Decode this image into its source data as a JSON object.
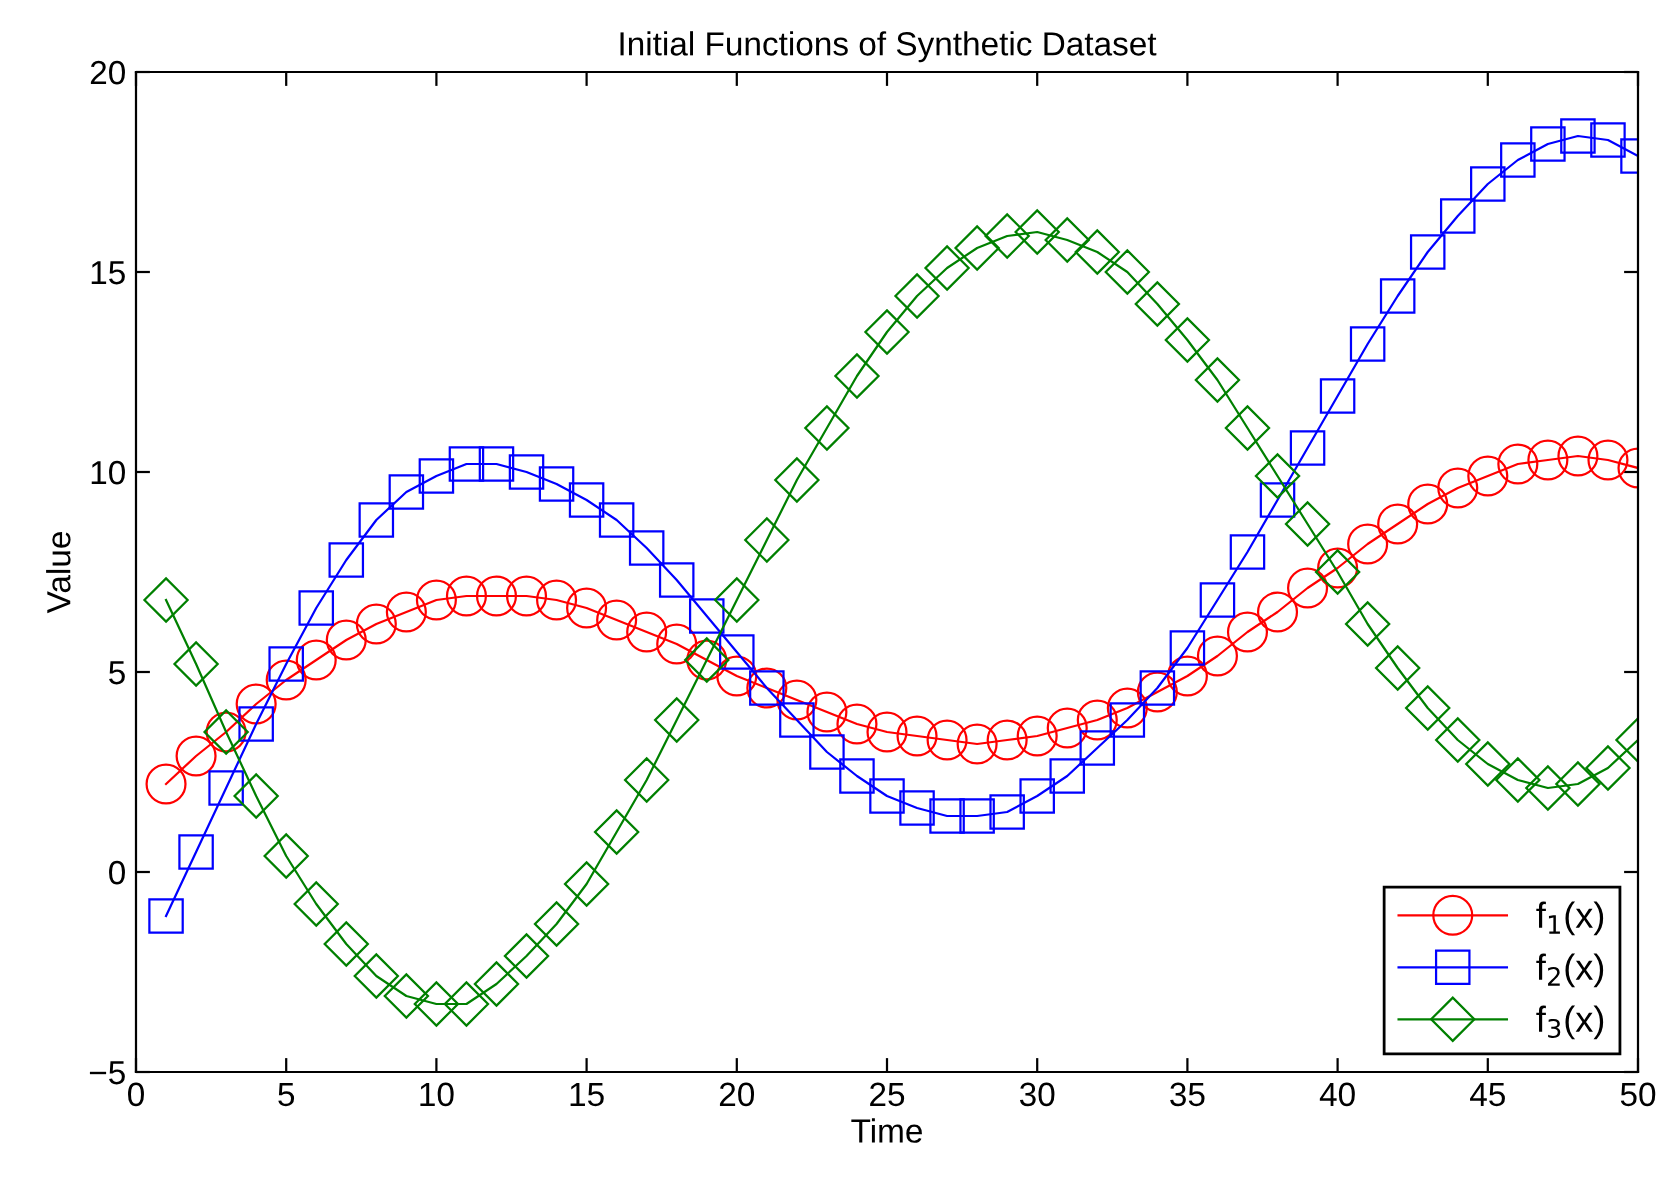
{
  "chart_data": {
    "type": "line",
    "title": "Initial Functions of Synthetic Dataset",
    "xlabel": "Time",
    "ylabel": "Value",
    "x": [
      1,
      2,
      3,
      4,
      5,
      6,
      7,
      8,
      9,
      10,
      11,
      12,
      13,
      14,
      15,
      16,
      17,
      18,
      19,
      20,
      21,
      22,
      23,
      24,
      25,
      26,
      27,
      28,
      29,
      30,
      31,
      32,
      33,
      34,
      35,
      36,
      37,
      38,
      39,
      40,
      41,
      42,
      43,
      44,
      45,
      46,
      47,
      48,
      49,
      50
    ],
    "series": [
      {
        "name": "f$_{1}$(x)",
        "color": "#ff0000",
        "marker": "circle",
        "values": [
          2.2,
          2.9,
          3.5,
          4.2,
          4.8,
          5.3,
          5.8,
          6.2,
          6.5,
          6.8,
          6.9,
          6.9,
          6.9,
          6.8,
          6.6,
          6.3,
          6.0,
          5.7,
          5.3,
          4.9,
          4.6,
          4.3,
          4.0,
          3.7,
          3.5,
          3.4,
          3.3,
          3.2,
          3.3,
          3.4,
          3.6,
          3.8,
          4.1,
          4.5,
          4.9,
          5.4,
          6.0,
          6.5,
          7.1,
          7.6,
          8.2,
          8.7,
          9.2,
          9.6,
          9.9,
          10.2,
          10.3,
          10.4,
          10.3,
          10.1
        ]
      },
      {
        "name": "f$_{2}$(x)",
        "color": "#0000ff",
        "marker": "square",
        "values": [
          -1.1,
          0.5,
          2.1,
          3.7,
          5.2,
          6.6,
          7.8,
          8.8,
          9.5,
          9.9,
          10.2,
          10.2,
          10.0,
          9.7,
          9.3,
          8.8,
          8.1,
          7.3,
          6.4,
          5.5,
          4.6,
          3.8,
          3.0,
          2.4,
          1.9,
          1.6,
          1.4,
          1.4,
          1.5,
          1.9,
          2.4,
          3.1,
          3.8,
          4.6,
          5.6,
          6.8,
          8.0,
          9.3,
          10.6,
          11.9,
          13.2,
          14.4,
          15.5,
          16.4,
          17.2,
          17.8,
          18.2,
          18.4,
          18.3,
          17.9
        ]
      },
      {
        "name": "f$_{3}$(x)",
        "color": "#008000",
        "marker": "diamond",
        "values": [
          6.8,
          5.2,
          3.5,
          1.9,
          0.4,
          -0.8,
          -1.8,
          -2.6,
          -3.1,
          -3.3,
          -3.3,
          -2.8,
          -2.1,
          -1.3,
          -0.3,
          1.0,
          2.3,
          3.8,
          5.3,
          6.8,
          8.3,
          9.8,
          11.1,
          12.4,
          13.5,
          14.4,
          15.1,
          15.6,
          15.9,
          16.0,
          15.8,
          15.5,
          15.0,
          14.2,
          13.3,
          12.3,
          11.1,
          9.9,
          8.7,
          7.5,
          6.2,
          5.1,
          4.1,
          3.3,
          2.7,
          2.3,
          2.1,
          2.2,
          2.6,
          3.3
        ]
      }
    ],
    "xlim": [
      0,
      50
    ],
    "xticks": [
      0,
      5,
      10,
      15,
      20,
      25,
      30,
      35,
      40,
      45,
      50
    ],
    "ylim": [
      -5,
      20
    ],
    "yticks": [
      -5,
      0,
      5,
      10,
      15,
      20
    ],
    "grid": false,
    "legend": "bottom right",
    "line_style": "solid"
  }
}
